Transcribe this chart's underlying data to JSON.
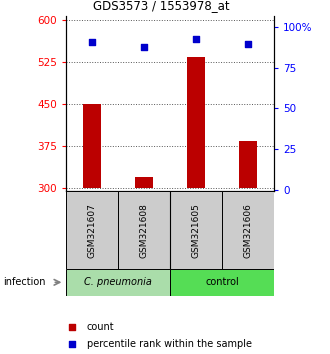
{
  "title": "GDS3573 / 1553978_at",
  "samples": [
    "GSM321607",
    "GSM321608",
    "GSM321605",
    "GSM321606"
  ],
  "counts": [
    450,
    320,
    535,
    385
  ],
  "percentiles": [
    91,
    88,
    93,
    90
  ],
  "ylim_left": [
    295,
    608
  ],
  "ylim_right": [
    -1,
    107
  ],
  "yticks_left": [
    300,
    375,
    450,
    525,
    600
  ],
  "yticks_right": [
    0,
    25,
    50,
    75,
    100
  ],
  "ytick_labels_right": [
    "0",
    "25",
    "50",
    "75",
    "100%"
  ],
  "bar_color": "#bb0000",
  "scatter_color": "#0000cc",
  "groups": [
    "C. pneumonia",
    "control"
  ],
  "group_colors": [
    "#aaddaa",
    "#55dd55"
  ],
  "xlabel_left": "infection",
  "legend_count_label": "count",
  "legend_pct_label": "percentile rank within the sample",
  "dotted_grid_color": "#555555",
  "bar_baseline": 300,
  "bar_width": 0.35,
  "fig_width": 3.3,
  "fig_height": 3.54,
  "dpi": 100
}
